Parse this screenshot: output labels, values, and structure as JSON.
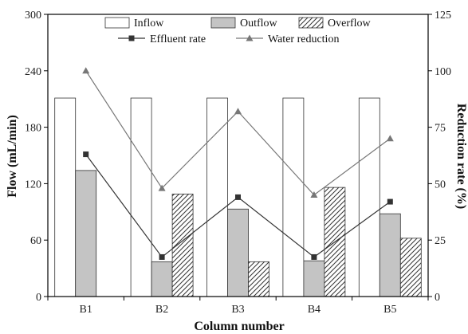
{
  "chart_data": {
    "type": "bar",
    "categories": [
      "B1",
      "B2",
      "B3",
      "B4",
      "B5"
    ],
    "xlabel": "Column number",
    "ylabel": "Flow (mL/min)",
    "y2label": "Reduction rate (%)",
    "ylim": [
      0,
      300
    ],
    "y2lim": [
      0,
      125
    ],
    "yticks": [
      "0",
      "60",
      "120",
      "180",
      "240",
      "300"
    ],
    "y2ticks": [
      "0",
      "25",
      "50",
      "75",
      "100",
      "125"
    ],
    "grid": false,
    "legend_position": "top",
    "bar_series": [
      {
        "name": "Inflow",
        "style": "white",
        "values": [
          211,
          211,
          211,
          211,
          211
        ]
      },
      {
        "name": "Outflow",
        "style": "gray",
        "values": [
          134,
          37,
          93,
          38,
          88
        ]
      },
      {
        "name": "Overflow",
        "style": "hatch",
        "values": [
          0,
          109,
          37,
          116,
          62
        ]
      }
    ],
    "line_series": [
      {
        "name": "Effluent rate",
        "marker": "square",
        "color": "#333333",
        "values": [
          63,
          17.5,
          44,
          17.5,
          42
        ]
      },
      {
        "name": "Water reduction",
        "marker": "triangle",
        "color": "#777777",
        "values": [
          100,
          48,
          82,
          45,
          70
        ]
      }
    ]
  }
}
